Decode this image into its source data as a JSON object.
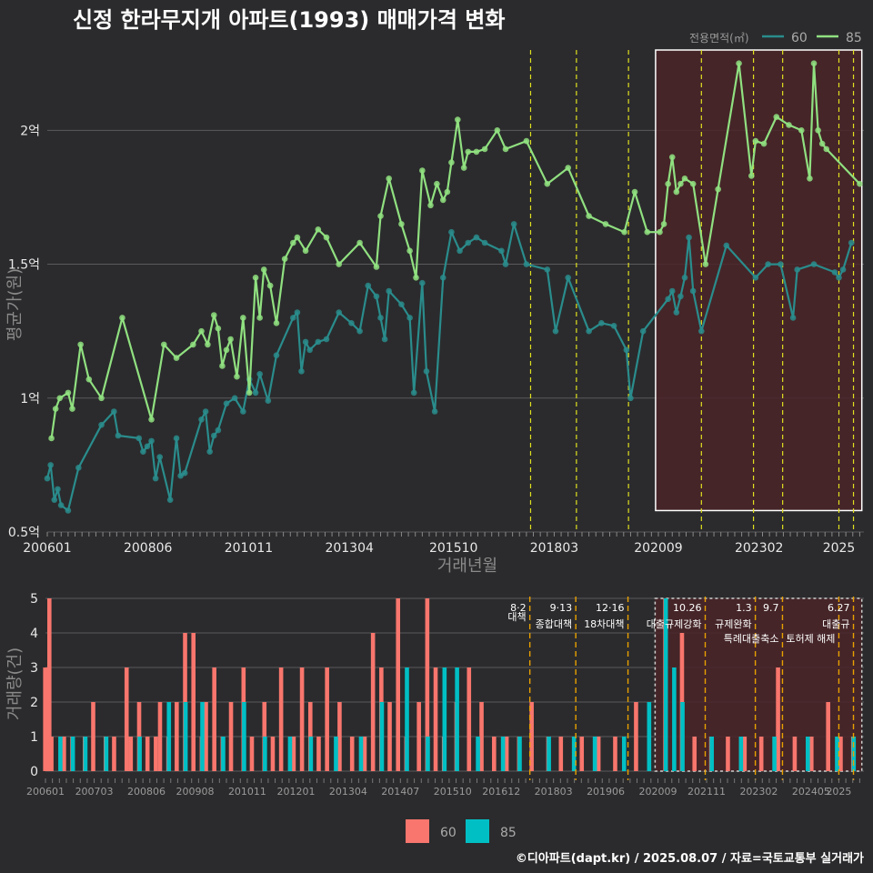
{
  "title": "신정 한라무지개 아파트(1993) 매매가격 변화",
  "caption": "©디아파트(dapt.kr) / 2025.08.07 / 자료=국토교통부 실거래가",
  "colors": {
    "background": "#2b2b2d",
    "series60_price": "#2a8c8c",
    "series85_price": "#90e080",
    "vol60": "#f8766d",
    "vol85": "#00bfc4",
    "policy_line_top": "#e0e020",
    "policy_line_bottom": "#e8a000",
    "highlight_fill": "#4a2428",
    "highlight_border": "#ffffff"
  },
  "chart_data": [
    {
      "type": "line",
      "title": "신정 한라무지개 아파트(1993) 매매가격 변화",
      "xlabel": "거래년월",
      "ylabel": "평균가(원)",
      "x_ticks": [
        "200601",
        "200806",
        "201011",
        "201304",
        "201510",
        "201803",
        "202009",
        "202302",
        "2025"
      ],
      "y_ticks": [
        {
          "value": 0.5,
          "label": "0.5억"
        },
        {
          "value": 1.0,
          "label": "1억"
        },
        {
          "value": 1.5,
          "label": "1.5억"
        },
        {
          "value": 2.0,
          "label": "2억"
        }
      ],
      "ylim": [
        0.5,
        2.3
      ],
      "xlim": [
        2006.0,
        2025.6
      ],
      "legend": {
        "title": "전용면적(㎡)",
        "position": "top-right",
        "entries": [
          "60",
          "85"
        ]
      },
      "policy_dates": [
        2017.6,
        2018.7,
        2019.95,
        2021.7,
        2022.95,
        2023.65,
        2025.0,
        2025.35
      ],
      "highlight_range": {
        "x": [
          2020.6,
          2025.55
        ],
        "y": [
          0.58,
          2.3
        ]
      },
      "series": [
        {
          "name": "60",
          "x": [
            2006.0,
            2006.08,
            2006.17,
            2006.25,
            2006.33,
            2006.5,
            2006.75,
            2007.3,
            2007.6,
            2007.7,
            2008.2,
            2008.3,
            2008.4,
            2008.5,
            2008.6,
            2008.7,
            2008.95,
            2009.1,
            2009.2,
            2009.3,
            2009.7,
            2009.8,
            2009.9,
            2010.0,
            2010.1,
            2010.3,
            2010.5,
            2010.7,
            2010.85,
            2011.0,
            2011.1,
            2011.3,
            2011.5,
            2011.9,
            2012.0,
            2012.1,
            2012.2,
            2012.3,
            2012.5,
            2012.7,
            2013.0,
            2013.3,
            2013.5,
            2013.7,
            2013.9,
            2014.0,
            2014.1,
            2014.2,
            2014.5,
            2014.7,
            2014.8,
            2015.0,
            2015.1,
            2015.3,
            2015.5,
            2015.7,
            2015.9,
            2016.1,
            2016.3,
            2016.5,
            2016.9,
            2017.0,
            2017.2,
            2017.5,
            2018.0,
            2018.2,
            2018.5,
            2019.0,
            2019.3,
            2019.6,
            2019.9,
            2020.0,
            2020.3,
            2020.9,
            2021.0,
            2021.1,
            2021.2,
            2021.3,
            2021.4,
            2021.5,
            2021.7,
            2022.3,
            2023.0,
            2023.3,
            2023.6,
            2023.9,
            2024.0,
            2024.4,
            2024.9,
            2025.0,
            2025.1,
            2025.3
          ],
          "values": [
            0.7,
            0.75,
            0.62,
            0.66,
            0.6,
            0.58,
            0.74,
            0.9,
            0.95,
            0.86,
            0.85,
            0.8,
            0.82,
            0.84,
            0.7,
            0.78,
            0.62,
            0.85,
            0.71,
            0.72,
            0.92,
            0.95,
            0.8,
            0.86,
            0.88,
            0.98,
            1.0,
            0.95,
            1.07,
            1.02,
            1.09,
            0.99,
            1.16,
            1.3,
            1.32,
            1.1,
            1.21,
            1.18,
            1.21,
            1.22,
            1.32,
            1.28,
            1.25,
            1.42,
            1.38,
            1.3,
            1.22,
            1.4,
            1.35,
            1.3,
            1.02,
            1.43,
            1.1,
            0.95,
            1.45,
            1.62,
            1.55,
            1.58,
            1.6,
            1.58,
            1.55,
            1.5,
            1.65,
            1.5,
            1.48,
            1.25,
            1.45,
            1.25,
            1.28,
            1.27,
            1.18,
            1.0,
            1.25,
            1.37,
            1.4,
            1.32,
            1.38,
            1.45,
            1.6,
            1.4,
            1.25,
            1.57,
            1.45,
            1.5,
            1.5,
            1.3,
            1.48,
            1.5,
            1.47,
            1.45,
            1.48,
            1.58
          ]
        },
        {
          "name": "85",
          "x": [
            2006.1,
            2006.2,
            2006.3,
            2006.5,
            2006.6,
            2006.8,
            2007.0,
            2007.3,
            2007.8,
            2008.5,
            2008.8,
            2009.1,
            2009.5,
            2009.7,
            2009.85,
            2010.0,
            2010.1,
            2010.2,
            2010.3,
            2010.4,
            2010.55,
            2010.7,
            2010.85,
            2011.0,
            2011.1,
            2011.2,
            2011.35,
            2011.5,
            2011.7,
            2011.9,
            2012.0,
            2012.2,
            2012.5,
            2012.7,
            2013.0,
            2013.5,
            2013.9,
            2014.0,
            2014.2,
            2014.5,
            2014.7,
            2014.85,
            2015.0,
            2015.2,
            2015.35,
            2015.5,
            2015.6,
            2015.7,
            2015.85,
            2016.0,
            2016.1,
            2016.3,
            2016.5,
            2016.8,
            2017.0,
            2017.5,
            2018.0,
            2018.5,
            2019.0,
            2019.4,
            2019.85,
            2020.1,
            2020.4,
            2020.7,
            2020.8,
            2020.9,
            2021.0,
            2021.1,
            2021.2,
            2021.3,
            2021.5,
            2021.8,
            2022.1,
            2022.6,
            2022.9,
            2023.0,
            2023.2,
            2023.5,
            2023.8,
            2024.1,
            2024.3,
            2024.4,
            2024.5,
            2024.6,
            2024.7,
            2025.5
          ],
          "values": [
            0.85,
            0.96,
            1.0,
            1.02,
            0.96,
            1.2,
            1.07,
            1.0,
            1.3,
            0.92,
            1.2,
            1.15,
            1.2,
            1.25,
            1.2,
            1.31,
            1.26,
            1.12,
            1.18,
            1.22,
            1.08,
            1.3,
            1.02,
            1.45,
            1.3,
            1.48,
            1.42,
            1.28,
            1.52,
            1.58,
            1.6,
            1.55,
            1.63,
            1.6,
            1.5,
            1.58,
            1.49,
            1.68,
            1.82,
            1.65,
            1.55,
            1.45,
            1.85,
            1.72,
            1.8,
            1.74,
            1.77,
            1.88,
            2.04,
            1.86,
            1.92,
            1.92,
            1.93,
            2.0,
            1.93,
            1.96,
            1.8,
            1.86,
            1.68,
            1.65,
            1.62,
            1.77,
            1.62,
            1.62,
            1.65,
            1.8,
            1.9,
            1.77,
            1.8,
            1.82,
            1.8,
            1.5,
            1.78,
            2.25,
            1.83,
            1.96,
            1.95,
            2.05,
            2.02,
            2.0,
            1.82,
            2.25,
            2.0,
            1.95,
            1.93,
            1.8
          ]
        }
      ]
    },
    {
      "type": "bar",
      "xlabel": "",
      "ylabel": "거래량(건)",
      "x_ticks": [
        "200601",
        "200703",
        "200806",
        "200908",
        "201011",
        "201201",
        "201304",
        "201407",
        "201510",
        "201612",
        "201803",
        "201906",
        "202009",
        "202111",
        "202302",
        "202405",
        "2025"
      ],
      "y_ticks": [
        "0",
        "1",
        "2",
        "3",
        "4",
        "5"
      ],
      "ylim": [
        0,
        5
      ],
      "xlim": [
        2006.0,
        2025.6
      ],
      "legend": {
        "position": "bottom",
        "entries": [
          "60",
          "85"
        ]
      },
      "policies": [
        {
          "x": 2017.6,
          "date": "8·2",
          "label": "대책"
        },
        {
          "x": 2018.7,
          "date": "9·13",
          "label": "종합대책"
        },
        {
          "x": 2019.95,
          "date": "12·16",
          "label": "18차대책"
        },
        {
          "x": 2021.8,
          "date": "10.26",
          "label": "대출규제강화"
        },
        {
          "x": 2023.0,
          "date": "1.3",
          "label": "규제완화"
        },
        {
          "x": 2023.65,
          "date": "9.7",
          "label": "특례대출축소"
        },
        {
          "x": 2025.0,
          "date": "",
          "label": "토허제 해제"
        },
        {
          "x": 2025.35,
          "date": "6.27",
          "label": "대출규"
        }
      ],
      "highlight_range": {
        "x": [
          2020.6,
          2025.55
        ],
        "y": [
          0,
          5
        ]
      },
      "series": [
        {
          "name": "60",
          "x": [
            2006.05,
            2006.15,
            2006.2,
            2006.5,
            2006.7,
            2007.0,
            2007.2,
            2007.5,
            2007.7,
            2008.0,
            2008.1,
            2008.3,
            2008.5,
            2008.7,
            2008.8,
            2009.0,
            2009.2,
            2009.4,
            2009.6,
            2009.8,
            2009.9,
            2010.1,
            2010.3,
            2010.5,
            2010.8,
            2011.0,
            2011.3,
            2011.5,
            2011.7,
            2012.0,
            2012.2,
            2012.4,
            2012.6,
            2012.8,
            2013.1,
            2013.4,
            2013.7,
            2013.9,
            2014.1,
            2014.3,
            2014.5,
            2014.7,
            2015.0,
            2015.2,
            2015.4,
            2015.6,
            2015.9,
            2016.2,
            2016.5,
            2016.8,
            2017.1,
            2017.4,
            2017.7,
            2018.1,
            2018.4,
            2018.9,
            2019.3,
            2019.7,
            2020.2,
            2020.9,
            2021.3,
            2021.6,
            2022.0,
            2022.4,
            2022.8,
            2023.2,
            2023.6,
            2024.0,
            2024.4,
            2024.8,
            2025.1,
            2025.4
          ],
          "values": [
            3,
            5,
            1,
            1,
            1,
            1,
            2,
            1,
            1,
            3,
            1,
            2,
            1,
            1,
            2,
            1,
            2,
            4,
            4,
            1,
            2,
            3,
            1,
            2,
            3,
            1,
            2,
            1,
            3,
            1,
            3,
            2,
            1,
            3,
            2,
            1,
            1,
            4,
            3,
            2,
            5,
            1,
            2,
            5,
            3,
            1,
            2,
            3,
            2,
            1,
            1,
            1,
            2,
            1,
            1,
            1,
            1,
            1,
            2,
            5,
            4,
            1,
            1,
            1,
            1,
            1,
            3,
            1,
            1,
            2,
            1,
            1
          ]
        },
        {
          "name": "85",
          "x": [
            2006.3,
            2006.6,
            2006.9,
            2007.4,
            2008.2,
            2008.9,
            2009.3,
            2009.7,
            2010.2,
            2010.7,
            2011.2,
            2011.8,
            2012.3,
            2012.9,
            2013.5,
            2014.0,
            2014.6,
            2015.1,
            2015.5,
            2015.8,
            2016.3,
            2016.9,
            2017.3,
            2018.0,
            2018.6,
            2019.1,
            2019.8,
            2020.4,
            2020.8,
            2021.0,
            2021.2,
            2021.9,
            2022.6,
            2023.4,
            2024.2,
            2024.9,
            2025.3
          ],
          "values": [
            1,
            1,
            1,
            1,
            1,
            2,
            2,
            2,
            1,
            2,
            1,
            1,
            1,
            1,
            1,
            2,
            3,
            1,
            3,
            3,
            1,
            1,
            1,
            1,
            1,
            1,
            1,
            2,
            5,
            3,
            2,
            1,
            1,
            1,
            1,
            1,
            1
          ]
        }
      ]
    }
  ]
}
